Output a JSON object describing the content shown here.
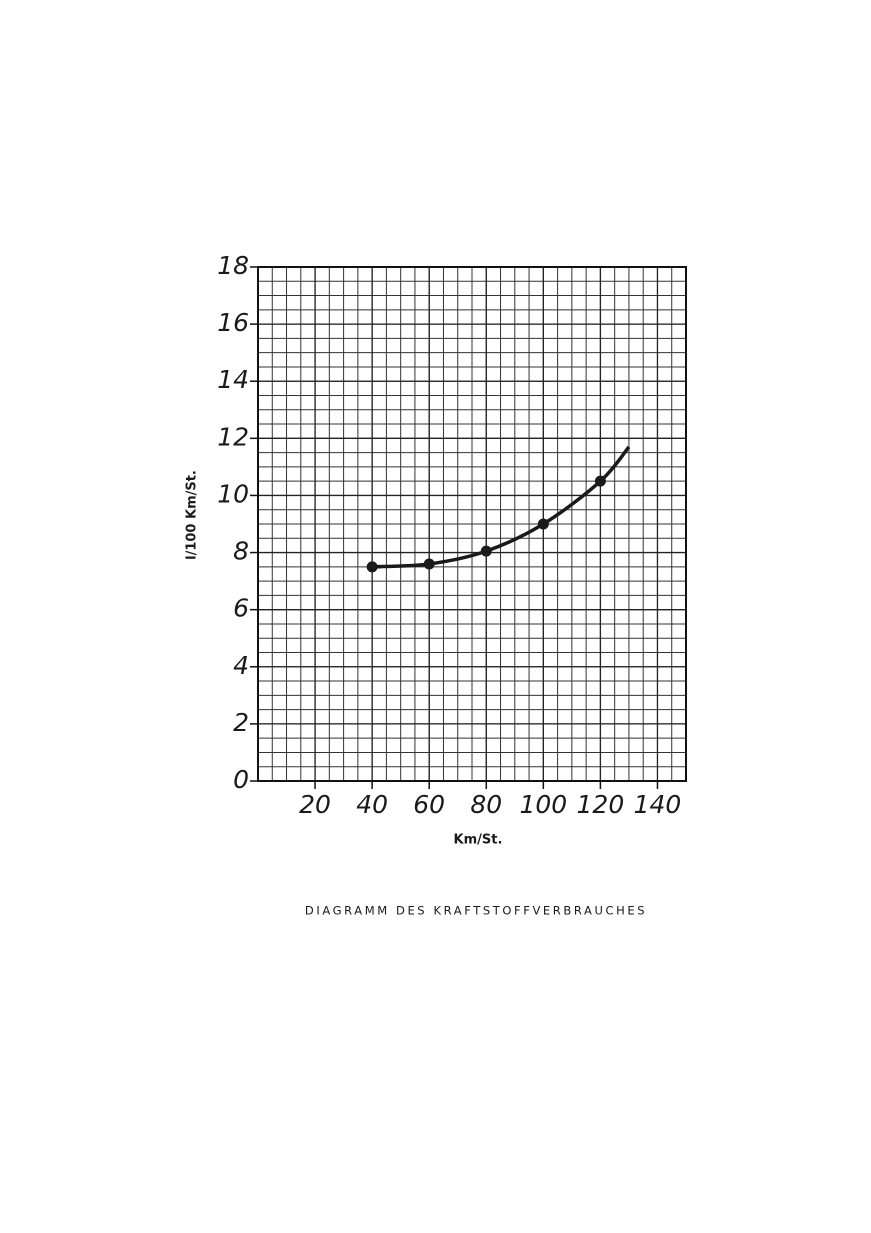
{
  "chart_data": {
    "type": "line",
    "title": "DIAGRAMM DES KRAFTSTOFFVERBRAUCHES",
    "x_label": "Km/St.",
    "y_label": "l/100 Km/St.",
    "xlim": [
      0,
      150
    ],
    "ylim": [
      0,
      18
    ],
    "xticks": [
      20,
      40,
      60,
      80,
      100,
      120,
      140
    ],
    "yticks": [
      0,
      2,
      4,
      6,
      8,
      10,
      12,
      14,
      16,
      18
    ],
    "grid": true,
    "color": "#1a1a1a",
    "curve": {
      "x": [
        40,
        60,
        80,
        100,
        120,
        130
      ],
      "values": [
        7.5,
        7.6,
        8.05,
        9.0,
        10.5,
        11.7
      ]
    },
    "points": {
      "x": [
        40,
        60,
        80,
        100,
        120
      ],
      "values": [
        7.5,
        7.6,
        8.05,
        9.0,
        10.5
      ]
    }
  }
}
